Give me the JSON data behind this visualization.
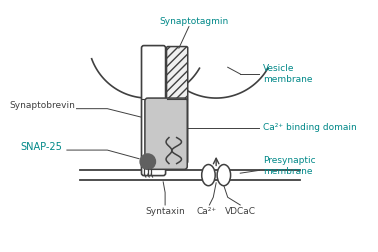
{
  "bg_color": "#ffffff",
  "lc": "#404040",
  "teal": "#008888",
  "dark": "#404040",
  "labels": {
    "synaptotagmin": "Synaptotagmin",
    "synaptobrevin": "Synaptobrevin",
    "snap25": "SNAP-25",
    "syntaxin": "Syntaxin",
    "ca2": "Ca²⁺",
    "vdcac": "VDCaC",
    "vesicle": "Vesicle\nmembrane",
    "ca2_binding": "Ca²⁺ binding domain",
    "presynaptic": "Presynaptic\nmembrane"
  },
  "fig_w": 3.78,
  "fig_h": 2.52,
  "dpi": 100
}
